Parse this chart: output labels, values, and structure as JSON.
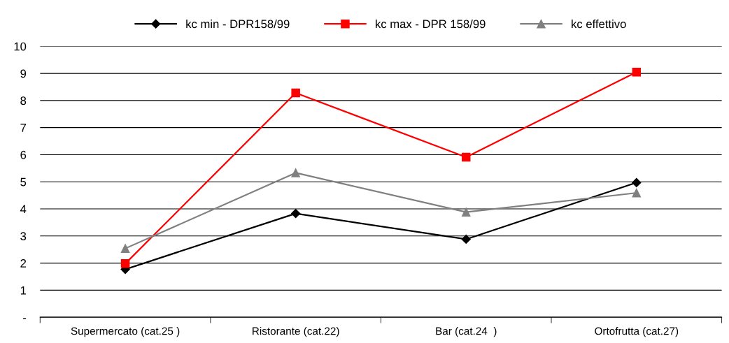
{
  "chart_data": {
    "type": "line",
    "categories": [
      "Supermercato (cat.25 )",
      "Ristorante (cat.22)",
      "Bar (cat.24  )",
      "Ortofrutta (cat.27)"
    ],
    "series": [
      {
        "name": "kc min - DPR158/99",
        "color": "#000000",
        "marker": "diamond",
        "values": [
          1.77,
          3.83,
          2.88,
          4.97
        ]
      },
      {
        "name": "kc max - DPR 158/99",
        "color": "#ff0000",
        "marker": "square",
        "values": [
          1.98,
          8.28,
          5.91,
          9.05
        ]
      },
      {
        "name": "kc effettivo",
        "color": "#808080",
        "marker": "triangle",
        "values": [
          2.54,
          5.33,
          3.88,
          4.59
        ]
      }
    ],
    "ylim": [
      0,
      10
    ],
    "yticks": [
      {
        "value": 0,
        "label": "-"
      },
      1,
      2,
      3,
      4,
      5,
      6,
      7,
      8,
      9,
      10
    ],
    "grid": "y",
    "legend": "top",
    "line_style": "solid"
  }
}
